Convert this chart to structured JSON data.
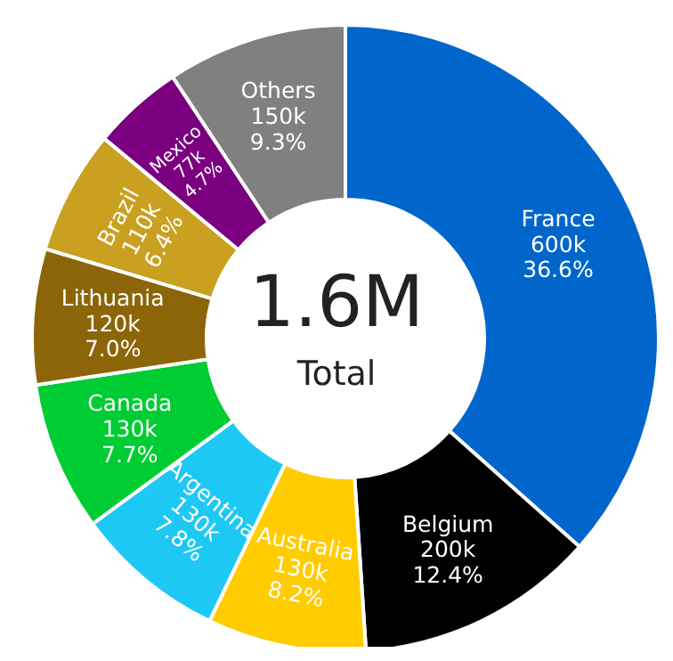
{
  "chart_data": {
    "type": "donut",
    "categories": [
      "France",
      "Belgium",
      "Australia",
      "Argentina",
      "Canada",
      "Lithuania",
      "Brazil",
      "Mexico",
      "Others"
    ],
    "values": [
      36.6,
      12.4,
      8.2,
      7.8,
      7.7,
      7.0,
      6.4,
      4.7,
      9.3
    ],
    "value_labels": [
      "600k\n36.6%",
      "200k\n12.4%",
      "130k\n8.2%",
      "130k\n7.8%",
      "130k\n7.7%",
      "120k\n7.0%",
      "110k\n6.4%",
      "77k\n4.7%",
      "150k\n9.3%"
    ],
    "colors": [
      "#0066cc",
      "#000000",
      "#ffcc00",
      "#1ec8f5",
      "#00cc33",
      "#8b6508",
      "#c9a020",
      "#7a0080",
      "#808080"
    ],
    "annotations": [
      "1.6M",
      "Total"
    ],
    "legend": false
  }
}
